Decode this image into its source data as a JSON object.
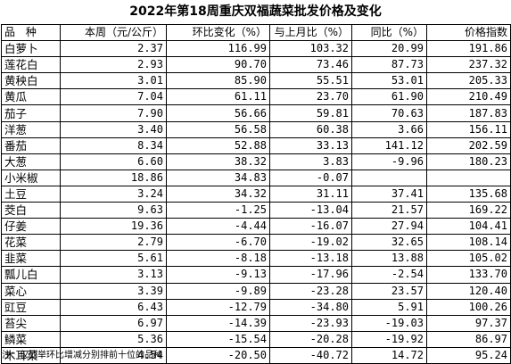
{
  "title": "2022年第18周重庆双福蔬菜批发价格及变化",
  "headers": {
    "name": "品 种",
    "price": "本周（元/公斤）",
    "wow": "环比变化（%）",
    "mom": "与上月比（%）",
    "yoy": "同比（%）",
    "index": "价格指数"
  },
  "rows": [
    {
      "name": "白萝卜",
      "price": "2.37",
      "wow": "116.99",
      "mom": "103.32",
      "yoy": "20.99",
      "index": "191.86"
    },
    {
      "name": "莲花白",
      "price": "2.93",
      "wow": "90.70",
      "mom": "73.46",
      "yoy": "87.73",
      "index": "237.32"
    },
    {
      "name": "黄秧白",
      "price": "3.01",
      "wow": "85.90",
      "mom": "55.51",
      "yoy": "53.01",
      "index": "205.33"
    },
    {
      "name": "黄瓜",
      "price": "7.04",
      "wow": "61.11",
      "mom": "23.70",
      "yoy": "61.90",
      "index": "210.49"
    },
    {
      "name": "茄子",
      "price": "7.90",
      "wow": "56.66",
      "mom": "59.81",
      "yoy": "70.63",
      "index": "187.83"
    },
    {
      "name": "洋葱",
      "price": "3.40",
      "wow": "56.58",
      "mom": "60.38",
      "yoy": "3.66",
      "index": "156.11"
    },
    {
      "name": "番茄",
      "price": "8.34",
      "wow": "52.88",
      "mom": "33.13",
      "yoy": "141.12",
      "index": "202.59"
    },
    {
      "name": "大葱",
      "price": "6.60",
      "wow": "38.32",
      "mom": "3.83",
      "yoy": "-9.96",
      "index": "180.23"
    },
    {
      "name": "小米椒",
      "price": "18.86",
      "wow": "34.83",
      "mom": "-0.07",
      "yoy": "",
      "index": ""
    },
    {
      "name": "土豆",
      "price": "3.24",
      "wow": "34.32",
      "mom": "31.11",
      "yoy": "37.41",
      "index": "135.68"
    },
    {
      "name": "茭白",
      "price": "9.63",
      "wow": "-1.25",
      "mom": "-13.04",
      "yoy": "21.57",
      "index": "169.22"
    },
    {
      "name": "仔姜",
      "price": "19.36",
      "wow": "-4.44",
      "mom": "-16.07",
      "yoy": "27.94",
      "index": "104.41"
    },
    {
      "name": "花菜",
      "price": "2.79",
      "wow": "-6.70",
      "mom": "-19.02",
      "yoy": "32.65",
      "index": "108.14"
    },
    {
      "name": "韭菜",
      "price": "5.61",
      "wow": "-8.18",
      "mom": "-13.18",
      "yoy": "13.88",
      "index": "105.02"
    },
    {
      "name": "瓢儿白",
      "price": "3.13",
      "wow": "-9.13",
      "mom": "-17.96",
      "yoy": "-2.54",
      "index": "133.70"
    },
    {
      "name": "菜心",
      "price": "3.39",
      "wow": "-9.89",
      "mom": "-23.28",
      "yoy": "23.57",
      "index": "120.40"
    },
    {
      "name": "豇豆",
      "price": "6.43",
      "wow": "-12.79",
      "mom": "-34.80",
      "yoy": "5.91",
      "index": "100.26"
    },
    {
      "name": "苔尖",
      "price": "6.97",
      "wow": "-14.39",
      "mom": "-23.93",
      "yoy": "-19.03",
      "index": "97.37"
    },
    {
      "name": "鳞菜",
      "price": "5.36",
      "wow": "-15.54",
      "mom": "-20.28",
      "yoy": "-19.92",
      "index": "86.97"
    },
    {
      "name": "木耳菜",
      "price": "4.54",
      "wow": "-20.50",
      "mom": "-40.72",
      "yoy": "14.72",
      "index": "95.24"
    }
  ],
  "note": "注：仅列举环比增减分别排前十位的品种"
}
